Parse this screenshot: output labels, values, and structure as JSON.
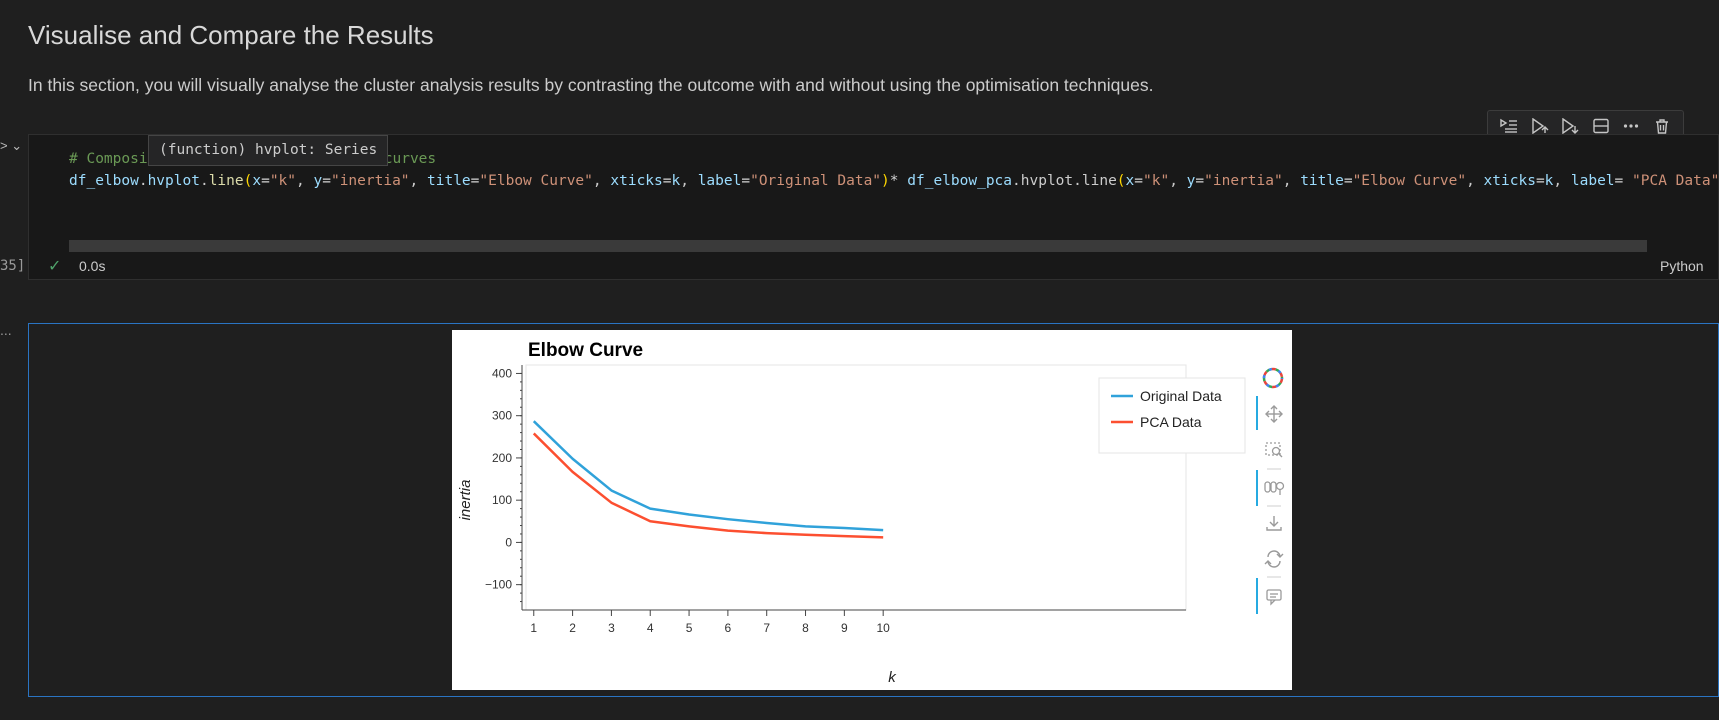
{
  "markdown": {
    "title": "Visualise and Compare the Results",
    "paragraph": "In this section, you will visually analyse the cluster analysis results by contrasting the outcome with and without using the optimisation techniques."
  },
  "gutter": {
    "chevron": "> ⌄",
    "execution_count": "35]",
    "output_more": "..."
  },
  "code_cell": {
    "line1": {
      "comment_a": "# Composi",
      "comment_b": "ow curves"
    },
    "line2": {
      "var1": "df_elbow",
      "dot1": ".",
      "fn1": "hvplot",
      "dot2": ".",
      "fn2": "line",
      "p_open1": "(",
      "k_x1": "x",
      "eq1": "=",
      "s_k1": "\"k\"",
      "c1": ", ",
      "k_y1": "y",
      "eq2": "=",
      "s_inertia1": "\"inertia\"",
      "c2": ", ",
      "k_title1": "title",
      "eq3": "=",
      "s_title1": "\"Elbow Curve\"",
      "c3": ", ",
      "k_xticks1": "xticks",
      "eq4": "=",
      "v_k1": "k",
      "c4": ", ",
      "k_label1": "label",
      "eq5": "=",
      "s_label1": "\"Original Data\"",
      "p_close1": ")",
      "star": "* ",
      "var2": "df_elbow_pca",
      "dot3": ".",
      "fn3": "hvplot",
      "dot4": ".",
      "fn4": "line",
      "p_open2": "(",
      "k_x2": "x",
      "eq6": "=",
      "s_k2": "\"k\"",
      "c5": ", ",
      "k_y2": "y",
      "eq7": "=",
      "s_inertia2": "\"inertia\"",
      "c6": ", ",
      "k_title2": "title",
      "eq8": "=",
      "s_title2": "\"Elbow Curve\"",
      "c7": ", ",
      "k_xticks2": "xticks",
      "eq9": "=",
      "v_k2": "k",
      "c8": ", ",
      "k_label2": "label",
      "eq10": "= ",
      "s_label2": "\"PCA Data\"",
      "p_close2": ")"
    },
    "tooltip": "(function) hvplot: Series",
    "status_check": "✓",
    "exec_time": "0.0s",
    "language": "Python"
  },
  "toolbar": {
    "icons": [
      "run-by-line-icon",
      "execute-above-icon",
      "execute-below-icon",
      "split-cell-icon",
      "more-icon",
      "delete-icon"
    ]
  },
  "chart_data": {
    "type": "line",
    "title": "Elbow Curve",
    "xlabel": "k",
    "ylabel": "inertia",
    "x": [
      1,
      2,
      3,
      4,
      5,
      6,
      7,
      8,
      9,
      10
    ],
    "series": [
      {
        "name": "Original Data",
        "color": "#30a2da",
        "values": [
          287,
          198,
          123,
          80,
          66,
          55,
          46,
          38,
          34,
          29
        ]
      },
      {
        "name": "PCA Data",
        "color": "#fc4f30",
        "values": [
          258,
          167,
          94,
          50,
          38,
          28,
          22,
          18,
          15,
          12
        ]
      }
    ],
    "xlim": [
      0.8,
      17.8
    ],
    "ylim": [
      -160,
      420
    ],
    "yticks": [
      -100,
      0,
      100,
      200,
      300,
      400
    ],
    "xticks": [
      1,
      2,
      3,
      4,
      5,
      6,
      7,
      8,
      9,
      10
    ],
    "grid": false,
    "legend_position": "top-right",
    "toolbar_icons": [
      "bokeh-logo-icon",
      "pan-icon",
      "box-zoom-icon",
      "wheel-zoom-icon",
      "save-icon",
      "reset-icon",
      "hover-icon"
    ]
  }
}
